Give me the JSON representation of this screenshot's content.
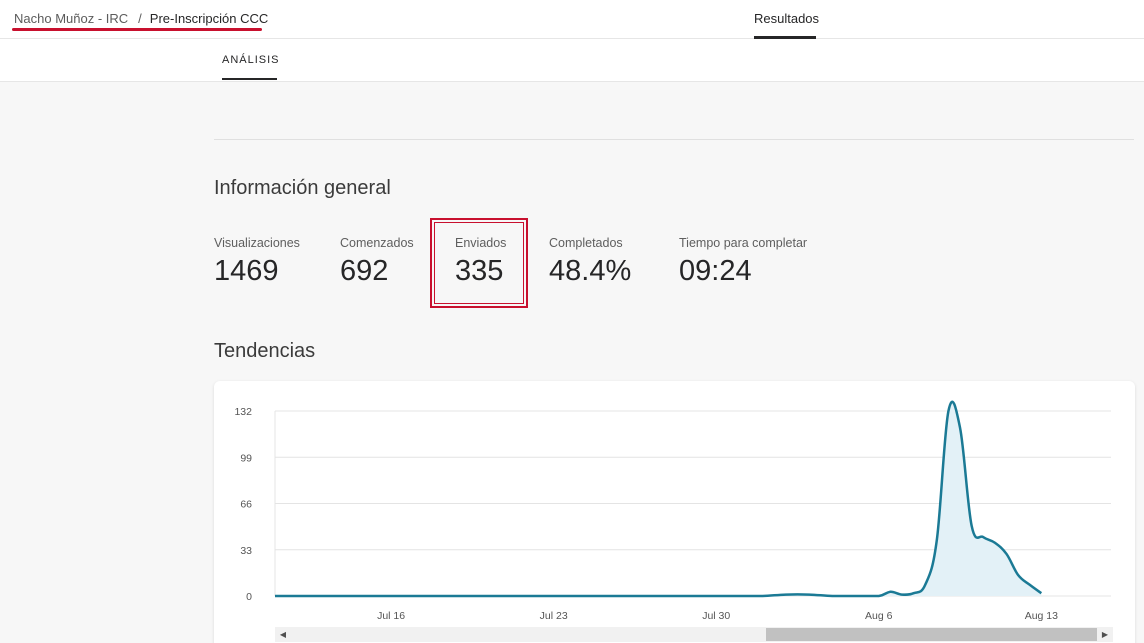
{
  "header": {
    "breadcrumb_workspace": "Nacho Muñoz - IRC",
    "breadcrumb_separator": "/",
    "breadcrumb_form": "Pre-Inscripción CCC",
    "tab_results": "Resultados"
  },
  "subnav": {
    "tab_analysis": "ANÁLISIS"
  },
  "overview": {
    "title": "Información general",
    "metrics": [
      {
        "label": "Visualizaciones",
        "value": "1469"
      },
      {
        "label": "Comenzados",
        "value": "692"
      },
      {
        "label": "Enviados",
        "value": "335"
      },
      {
        "label": "Completados",
        "value": "48.4%"
      },
      {
        "label": "Tiempo para completar",
        "value": "09:24"
      }
    ]
  },
  "trends": {
    "title": "Tendencias"
  },
  "colors": {
    "accent": "#c8102e",
    "line": "#1b7a95",
    "area": "#e3f1f7"
  },
  "chart_data": {
    "type": "area",
    "yticks": [
      0,
      33,
      66,
      99,
      132
    ],
    "ylim": [
      0,
      132
    ],
    "xtick_labels": [
      "Jul 16",
      "Jul 23",
      "Jul 30",
      "Aug 6",
      "Aug 13"
    ],
    "xtick_days": [
      16,
      23,
      30,
      37,
      44
    ],
    "xlim_days": [
      11,
      47
    ],
    "grid": true,
    "series": [
      {
        "x_days": [
          11,
          12,
          13,
          14,
          15,
          16,
          17,
          18,
          19,
          20,
          21,
          22,
          23,
          24,
          25,
          26,
          27,
          28,
          29,
          30,
          31,
          32,
          33,
          34,
          35,
          36,
          37,
          37.5,
          38,
          38.5,
          39,
          39.5,
          40,
          40.5,
          41,
          41.5,
          42,
          42.5,
          43,
          43.5,
          44
        ],
        "values": [
          0,
          0,
          0,
          0,
          0,
          0,
          0,
          0,
          0,
          0,
          0,
          0,
          0,
          0,
          0,
          0,
          0,
          0,
          0,
          0,
          0,
          0,
          1,
          1,
          0,
          0,
          0,
          3,
          1,
          2,
          8,
          40,
          132,
          120,
          50,
          42,
          38,
          30,
          15,
          8,
          2
        ]
      }
    ]
  }
}
